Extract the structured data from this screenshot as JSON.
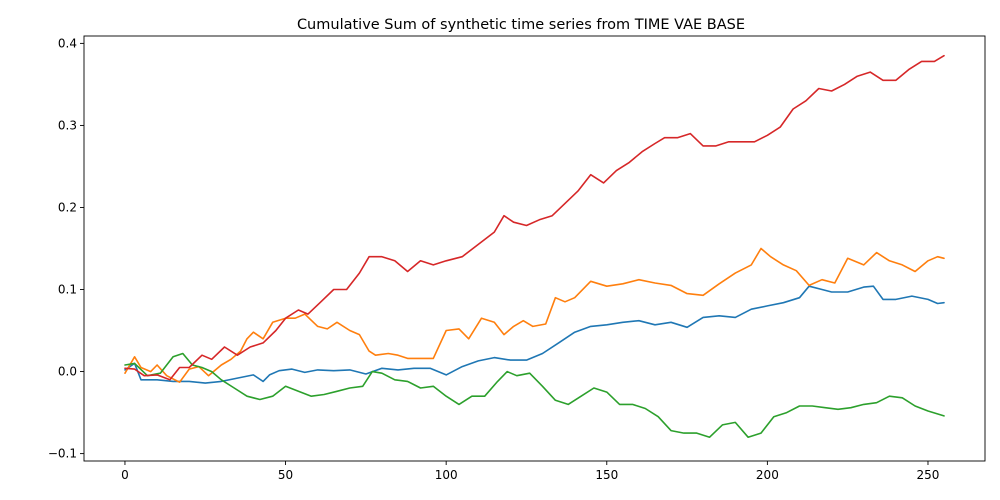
{
  "chart_data": {
    "type": "line",
    "title": "Cumulative Sum of synthetic time series from TIME VAE BASE",
    "xlabel": "",
    "ylabel": "",
    "xlim": [
      -12.75,
      267.75
    ],
    "ylim": [
      -0.109,
      0.409
    ],
    "xticks": [
      0,
      50,
      100,
      150,
      200,
      250
    ],
    "xtick_labels": [
      "0",
      "50",
      "100",
      "150",
      "200",
      "250"
    ],
    "yticks": [
      -0.1,
      0.0,
      0.1,
      0.2,
      0.3,
      0.4
    ],
    "ytick_labels": [
      "−0.1",
      "0.0",
      "0.1",
      "0.2",
      "0.3",
      "0.4"
    ],
    "grid": false,
    "legend": "none",
    "colors": [
      "#1f77b4",
      "#ff7f0e",
      "#2ca02c",
      "#d62728"
    ],
    "series": [
      {
        "points": [
          [
            0,
            0.002
          ],
          [
            3,
            0.01
          ],
          [
            5,
            -0.01
          ],
          [
            10,
            -0.01
          ],
          [
            15,
            -0.012
          ],
          [
            20,
            -0.012
          ],
          [
            25,
            -0.014
          ],
          [
            30,
            -0.012
          ],
          [
            35,
            -0.008
          ],
          [
            40,
            -0.004
          ],
          [
            43,
            -0.012
          ],
          [
            45,
            -0.004
          ],
          [
            48,
            0.001
          ],
          [
            52,
            0.003
          ],
          [
            56,
            -0.001
          ],
          [
            60,
            0.002
          ],
          [
            65,
            0.001
          ],
          [
            70,
            0.002
          ],
          [
            75,
            -0.003
          ],
          [
            80,
            0.004
          ],
          [
            85,
            0.002
          ],
          [
            90,
            0.004
          ],
          [
            95,
            0.004
          ],
          [
            100,
            -0.004
          ],
          [
            105,
            0.006
          ],
          [
            110,
            0.013
          ],
          [
            115,
            0.017
          ],
          [
            120,
            0.014
          ],
          [
            125,
            0.014
          ],
          [
            130,
            0.022
          ],
          [
            135,
            0.035
          ],
          [
            140,
            0.048
          ],
          [
            145,
            0.055
          ],
          [
            150,
            0.057
          ],
          [
            155,
            0.06
          ],
          [
            160,
            0.062
          ],
          [
            165,
            0.057
          ],
          [
            170,
            0.06
          ],
          [
            175,
            0.054
          ],
          [
            180,
            0.066
          ],
          [
            185,
            0.068
          ],
          [
            190,
            0.066
          ],
          [
            195,
            0.076
          ],
          [
            200,
            0.08
          ],
          [
            205,
            0.084
          ],
          [
            210,
            0.09
          ],
          [
            213,
            0.104
          ],
          [
            217,
            0.1
          ],
          [
            220,
            0.097
          ],
          [
            225,
            0.097
          ],
          [
            230,
            0.103
          ],
          [
            233,
            0.104
          ],
          [
            236,
            0.088
          ],
          [
            240,
            0.088
          ],
          [
            245,
            0.092
          ],
          [
            250,
            0.088
          ],
          [
            253,
            0.083
          ],
          [
            255,
            0.084
          ]
        ]
      },
      {
        "points": [
          [
            0,
            -0.002
          ],
          [
            3,
            0.018
          ],
          [
            5,
            0.005
          ],
          [
            8,
            0.0
          ],
          [
            10,
            0.008
          ],
          [
            13,
            -0.005
          ],
          [
            17,
            -0.013
          ],
          [
            20,
            0.003
          ],
          [
            23,
            0.006
          ],
          [
            26,
            -0.005
          ],
          [
            30,
            0.008
          ],
          [
            33,
            0.015
          ],
          [
            36,
            0.025
          ],
          [
            38,
            0.04
          ],
          [
            40,
            0.048
          ],
          [
            43,
            0.04
          ],
          [
            46,
            0.06
          ],
          [
            50,
            0.065
          ],
          [
            53,
            0.065
          ],
          [
            56,
            0.07
          ],
          [
            60,
            0.055
          ],
          [
            63,
            0.052
          ],
          [
            66,
            0.06
          ],
          [
            70,
            0.05
          ],
          [
            73,
            0.045
          ],
          [
            76,
            0.025
          ],
          [
            78,
            0.02
          ],
          [
            82,
            0.022
          ],
          [
            85,
            0.02
          ],
          [
            88,
            0.016
          ],
          [
            92,
            0.016
          ],
          [
            96,
            0.016
          ],
          [
            100,
            0.05
          ],
          [
            104,
            0.052
          ],
          [
            107,
            0.04
          ],
          [
            111,
            0.065
          ],
          [
            115,
            0.06
          ],
          [
            118,
            0.045
          ],
          [
            121,
            0.055
          ],
          [
            124,
            0.062
          ],
          [
            127,
            0.055
          ],
          [
            131,
            0.058
          ],
          [
            134,
            0.09
          ],
          [
            137,
            0.085
          ],
          [
            140,
            0.09
          ],
          [
            145,
            0.11
          ],
          [
            150,
            0.104
          ],
          [
            155,
            0.107
          ],
          [
            160,
            0.112
          ],
          [
            165,
            0.108
          ],
          [
            170,
            0.105
          ],
          [
            175,
            0.095
          ],
          [
            180,
            0.093
          ],
          [
            185,
            0.107
          ],
          [
            190,
            0.12
          ],
          [
            195,
            0.13
          ],
          [
            198,
            0.15
          ],
          [
            201,
            0.14
          ],
          [
            205,
            0.13
          ],
          [
            209,
            0.123
          ],
          [
            213,
            0.105
          ],
          [
            217,
            0.112
          ],
          [
            221,
            0.108
          ],
          [
            225,
            0.138
          ],
          [
            230,
            0.13
          ],
          [
            234,
            0.145
          ],
          [
            238,
            0.135
          ],
          [
            242,
            0.13
          ],
          [
            246,
            0.122
          ],
          [
            250,
            0.135
          ],
          [
            253,
            0.14
          ],
          [
            255,
            0.138
          ]
        ]
      },
      {
        "points": [
          [
            0,
            0.008
          ],
          [
            3,
            0.01
          ],
          [
            7,
            -0.005
          ],
          [
            11,
            -0.002
          ],
          [
            15,
            0.018
          ],
          [
            18,
            0.022
          ],
          [
            21,
            0.008
          ],
          [
            24,
            0.005
          ],
          [
            27,
            0.0
          ],
          [
            30,
            -0.01
          ],
          [
            34,
            -0.02
          ],
          [
            38,
            -0.03
          ],
          [
            42,
            -0.034
          ],
          [
            46,
            -0.03
          ],
          [
            50,
            -0.018
          ],
          [
            54,
            -0.024
          ],
          [
            58,
            -0.03
          ],
          [
            62,
            -0.028
          ],
          [
            66,
            -0.024
          ],
          [
            70,
            -0.02
          ],
          [
            74,
            -0.018
          ],
          [
            77,
            0.0
          ],
          [
            80,
            -0.002
          ],
          [
            84,
            -0.01
          ],
          [
            88,
            -0.012
          ],
          [
            92,
            -0.02
          ],
          [
            96,
            -0.018
          ],
          [
            100,
            -0.03
          ],
          [
            104,
            -0.04
          ],
          [
            108,
            -0.03
          ],
          [
            112,
            -0.03
          ],
          [
            116,
            -0.012
          ],
          [
            119,
            0.0
          ],
          [
            122,
            -0.005
          ],
          [
            126,
            -0.002
          ],
          [
            130,
            -0.018
          ],
          [
            134,
            -0.035
          ],
          [
            138,
            -0.04
          ],
          [
            142,
            -0.03
          ],
          [
            146,
            -0.02
          ],
          [
            150,
            -0.025
          ],
          [
            154,
            -0.04
          ],
          [
            158,
            -0.04
          ],
          [
            162,
            -0.045
          ],
          [
            166,
            -0.055
          ],
          [
            170,
            -0.072
          ],
          [
            174,
            -0.075
          ],
          [
            178,
            -0.075
          ],
          [
            182,
            -0.08
          ],
          [
            186,
            -0.065
          ],
          [
            190,
            -0.062
          ],
          [
            194,
            -0.08
          ],
          [
            198,
            -0.075
          ],
          [
            202,
            -0.055
          ],
          [
            206,
            -0.05
          ],
          [
            210,
            -0.042
          ],
          [
            214,
            -0.042
          ],
          [
            218,
            -0.044
          ],
          [
            222,
            -0.046
          ],
          [
            226,
            -0.044
          ],
          [
            230,
            -0.04
          ],
          [
            234,
            -0.038
          ],
          [
            238,
            -0.03
          ],
          [
            242,
            -0.032
          ],
          [
            246,
            -0.042
          ],
          [
            250,
            -0.048
          ],
          [
            255,
            -0.054
          ]
        ]
      },
      {
        "points": [
          [
            0,
            0.004
          ],
          [
            3,
            0.003
          ],
          [
            6,
            -0.005
          ],
          [
            10,
            -0.004
          ],
          [
            14,
            -0.01
          ],
          [
            17,
            0.005
          ],
          [
            20,
            0.005
          ],
          [
            24,
            0.02
          ],
          [
            27,
            0.015
          ],
          [
            31,
            0.03
          ],
          [
            35,
            0.02
          ],
          [
            39,
            0.03
          ],
          [
            43,
            0.035
          ],
          [
            47,
            0.05
          ],
          [
            50,
            0.065
          ],
          [
            54,
            0.075
          ],
          [
            57,
            0.07
          ],
          [
            61,
            0.085
          ],
          [
            65,
            0.1
          ],
          [
            69,
            0.1
          ],
          [
            73,
            0.12
          ],
          [
            76,
            0.14
          ],
          [
            80,
            0.14
          ],
          [
            84,
            0.135
          ],
          [
            88,
            0.122
          ],
          [
            92,
            0.135
          ],
          [
            96,
            0.13
          ],
          [
            100,
            0.135
          ],
          [
            105,
            0.14
          ],
          [
            110,
            0.155
          ],
          [
            115,
            0.17
          ],
          [
            118,
            0.19
          ],
          [
            121,
            0.182
          ],
          [
            125,
            0.178
          ],
          [
            129,
            0.185
          ],
          [
            133,
            0.19
          ],
          [
            137,
            0.205
          ],
          [
            141,
            0.22
          ],
          [
            145,
            0.24
          ],
          [
            149,
            0.23
          ],
          [
            153,
            0.245
          ],
          [
            157,
            0.255
          ],
          [
            161,
            0.268
          ],
          [
            165,
            0.278
          ],
          [
            168,
            0.285
          ],
          [
            172,
            0.285
          ],
          [
            176,
            0.29
          ],
          [
            180,
            0.275
          ],
          [
            184,
            0.275
          ],
          [
            188,
            0.28
          ],
          [
            192,
            0.28
          ],
          [
            196,
            0.28
          ],
          [
            200,
            0.288
          ],
          [
            204,
            0.298
          ],
          [
            208,
            0.32
          ],
          [
            212,
            0.33
          ],
          [
            216,
            0.345
          ],
          [
            220,
            0.342
          ],
          [
            224,
            0.35
          ],
          [
            228,
            0.36
          ],
          [
            232,
            0.365
          ],
          [
            236,
            0.355
          ],
          [
            240,
            0.355
          ],
          [
            244,
            0.368
          ],
          [
            248,
            0.378
          ],
          [
            252,
            0.378
          ],
          [
            255,
            0.385
          ]
        ]
      }
    ]
  }
}
